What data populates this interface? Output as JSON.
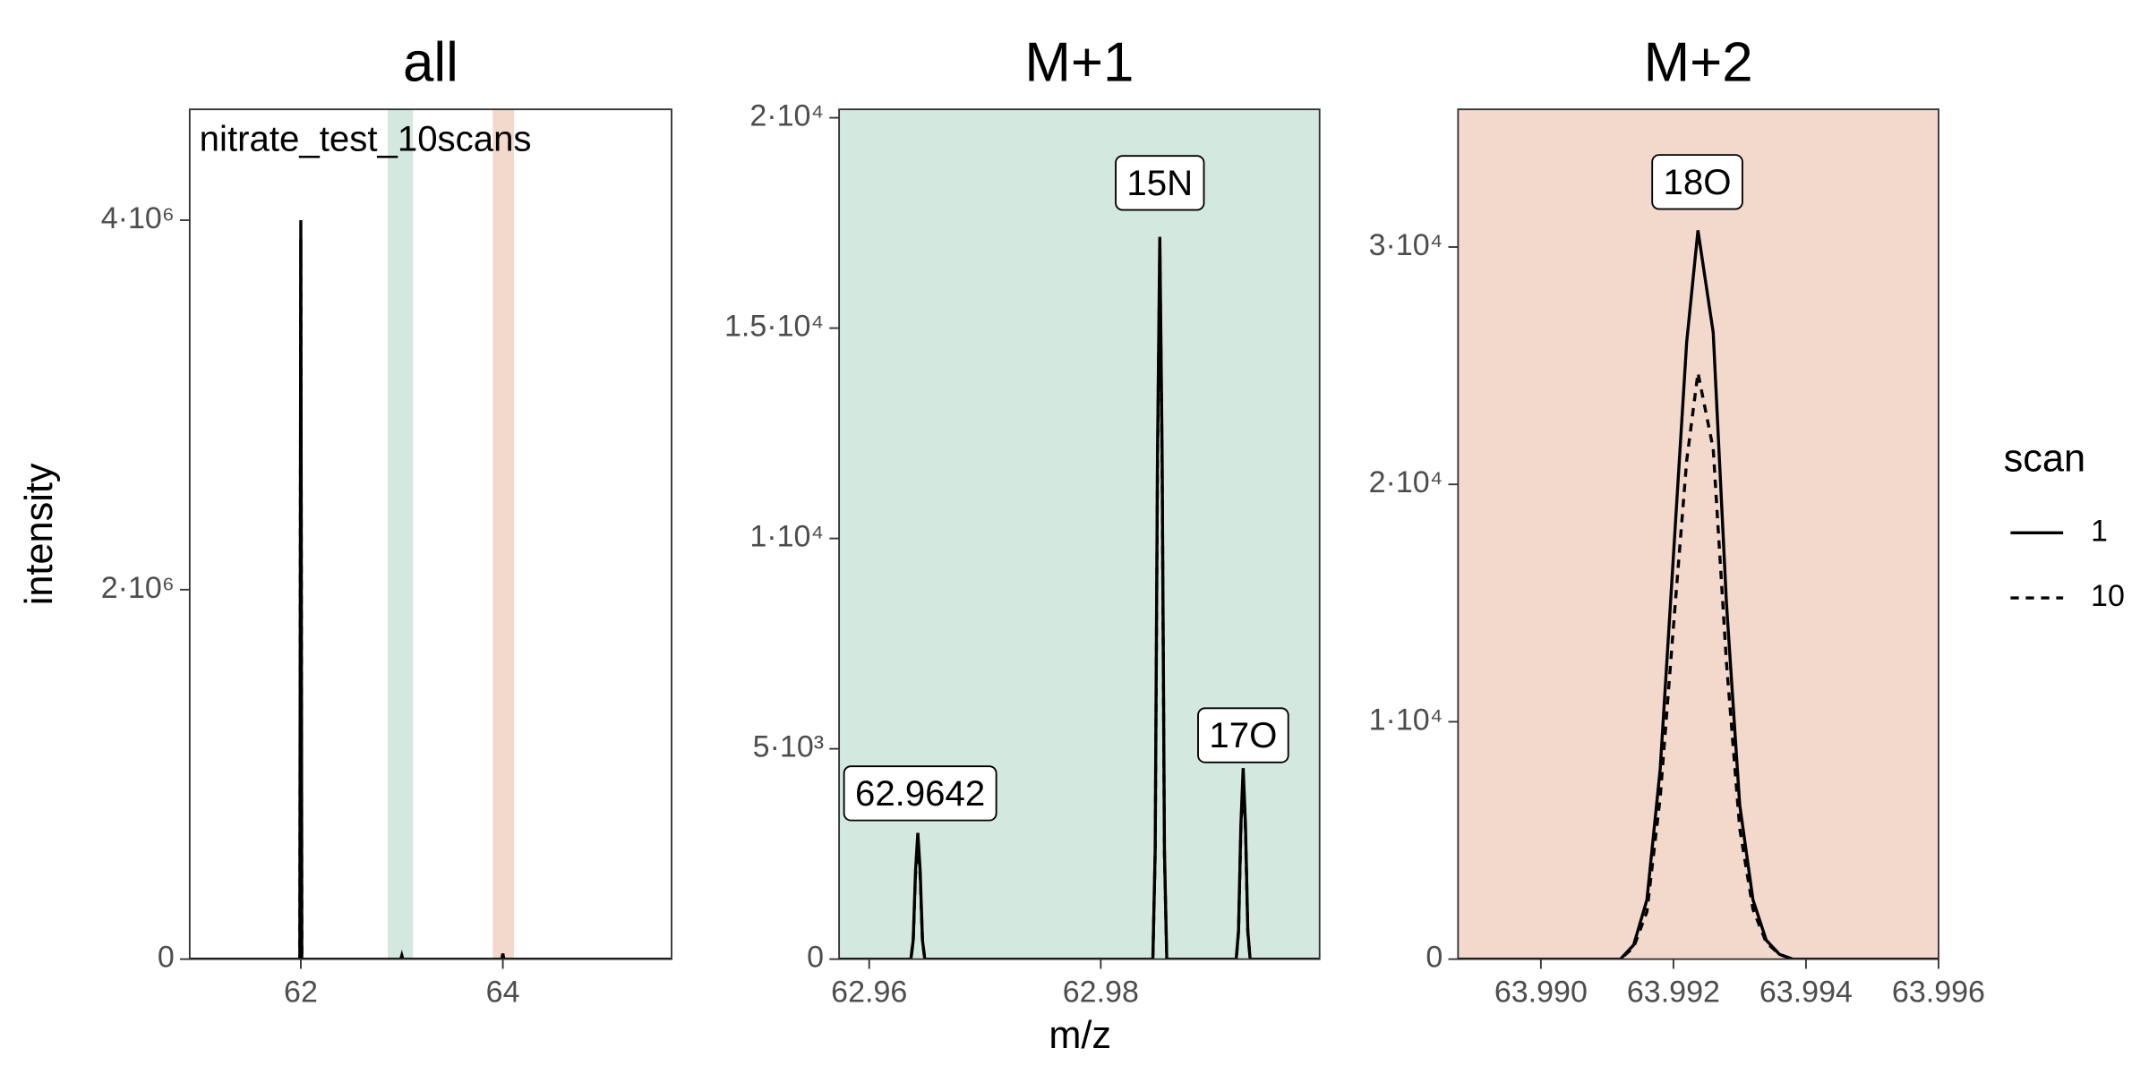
{
  "ylabel": "intensity",
  "xlabel": "m/z",
  "legend_title": "scan",
  "chart_data": [
    {
      "type": "line",
      "title": "all",
      "corner_label": "nitrate_test_10scans",
      "xlim": [
        60.9,
        65.67
      ],
      "ylim": [
        0,
        4600000
      ],
      "xticks": [
        62,
        64
      ],
      "yticks": [
        0,
        {
          "value": 2000000,
          "label": "2·10⁶"
        },
        {
          "value": 4000000,
          "label": "4·10⁶"
        }
      ],
      "bands": [
        {
          "xmin": 62.86,
          "xmax": 63.11,
          "color": "#d3e9df"
        },
        {
          "xmin": 63.9,
          "xmax": 64.11,
          "color": "#f3d8cc"
        }
      ],
      "x": [
        60.9,
        61.99,
        62.0,
        62.01,
        62.99,
        63.0,
        63.01,
        63.99,
        64.0,
        64.01,
        65.67
      ],
      "series": [
        {
          "name": "1",
          "color": "#000000",
          "dash": "solid",
          "values": [
            0,
            0,
            4000000,
            0,
            0,
            20000,
            0,
            0,
            30000,
            0,
            0
          ]
        },
        {
          "name": "10",
          "color": "#000000",
          "dash": "dashed",
          "values": [
            0,
            0,
            3900000,
            0,
            0,
            20000,
            0,
            0,
            25000,
            0,
            0
          ]
        }
      ]
    },
    {
      "type": "line",
      "title": "M+1",
      "background": "#d3e9df",
      "xlim": [
        62.9574,
        62.9989
      ],
      "ylim": [
        0,
        20200
      ],
      "xticks": [
        62.96,
        62.98
      ],
      "yticks": [
        0,
        {
          "value": 5000,
          "label": "5·10³"
        },
        {
          "value": 10000,
          "label": "1·10⁴"
        },
        {
          "value": 15000,
          "label": "1.5·10⁴"
        },
        {
          "value": 20000,
          "label": "2·10⁴"
        }
      ],
      "annotations": [
        {
          "text": "62.9642",
          "x": 62.9644,
          "y": 3880
        },
        {
          "text": "15N",
          "x": 62.9851,
          "y": 18390
        },
        {
          "text": "17O",
          "x": 62.9923,
          "y": 5260
        }
      ],
      "x": [
        62.9574,
        62.9636,
        62.9638,
        62.964,
        62.9642,
        62.9644,
        62.9646,
        62.9648,
        62.9845,
        62.9847,
        62.9849,
        62.9851,
        62.9853,
        62.9855,
        62.9857,
        62.9917,
        62.9919,
        62.9921,
        62.9923,
        62.9925,
        62.9927,
        62.9929,
        62.9989
      ],
      "series": [
        {
          "name": "1",
          "color": "#000000",
          "dash": "solid",
          "values": [
            0,
            0,
            450,
            2100,
            3000,
            2100,
            450,
            0,
            0,
            2580,
            12000,
            17170,
            12000,
            2580,
            0,
            0,
            680,
            3180,
            4540,
            3180,
            680,
            0,
            0
          ]
        },
        {
          "name": "10",
          "color": "#000000",
          "dash": "dashed",
          "values": [
            0,
            0,
            430,
            2000,
            2900,
            2000,
            430,
            0,
            0,
            2500,
            11700,
            16900,
            11700,
            2500,
            0,
            0,
            650,
            3050,
            4400,
            3050,
            650,
            0,
            0
          ]
        }
      ]
    },
    {
      "type": "line",
      "title": "M+2",
      "background": "#f3d8cc",
      "xlim": [
        63.98875,
        63.996
      ],
      "ylim": [
        0,
        35800
      ],
      "xticks": [
        {
          "value": 63.99,
          "label": "63.990"
        },
        63.992,
        63.994,
        63.996
      ],
      "yticks": [
        0,
        {
          "value": 10000,
          "label": "1·10⁴"
        },
        {
          "value": 20000,
          "label": "2·10⁴"
        },
        {
          "value": 30000,
          "label": "3·10⁴"
        }
      ],
      "annotations": [
        {
          "text": "18O",
          "x": 63.99236,
          "y": 32630
        }
      ],
      "x": [
        63.98875,
        63.9912,
        63.9914,
        63.9916,
        63.9918,
        63.992,
        63.9922,
        63.99237,
        63.9926,
        63.9928,
        63.993,
        63.9932,
        63.9934,
        63.9936,
        63.9938,
        63.996
      ],
      "series": [
        {
          "name": "1",
          "color": "#000000",
          "dash": "solid",
          "values": [
            0,
            0,
            600,
            2500,
            8000,
            17000,
            26000,
            30700,
            26400,
            15000,
            6500,
            2500,
            800,
            200,
            0,
            0
          ]
        },
        {
          "name": "10",
          "color": "#000000",
          "dash": "dashed",
          "values": [
            0,
            0,
            500,
            2000,
            6800,
            14000,
            21000,
            24700,
            21500,
            12500,
            5500,
            2100,
            700,
            200,
            0,
            0
          ]
        }
      ]
    }
  ]
}
